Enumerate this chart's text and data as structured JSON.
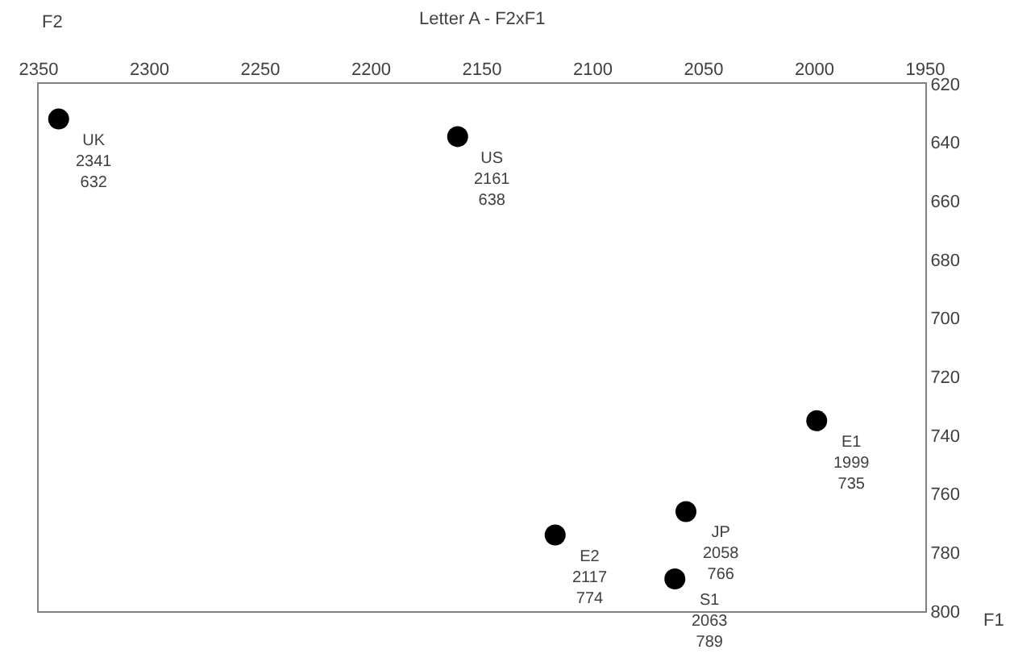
{
  "chart_data": {
    "type": "scatter",
    "title": "Letter A - F2xF1",
    "xlabel": "F2",
    "ylabel": "F1",
    "x": [
      2341,
      2161,
      1999,
      2058,
      2117,
      2063
    ],
    "values": [
      632,
      638,
      735,
      766,
      774,
      789
    ],
    "color": "#000000",
    "marker": "circle",
    "xlim": [
      2350,
      1950
    ],
    "xticks": [
      2350,
      2300,
      2250,
      2200,
      2150,
      2100,
      2050,
      2000,
      1950
    ],
    "ylim": [
      800,
      620
    ],
    "yticks": [
      620,
      640,
      660,
      680,
      700,
      720,
      740,
      760,
      780,
      800
    ],
    "annotations": [
      {
        "text": "UK\n2341\n632",
        "x": 2341,
        "y": 632
      },
      {
        "text": "US\n2161\n638",
        "x": 2161,
        "y": 638
      },
      {
        "text": "E1\n1999\n735",
        "x": 1999,
        "y": 735
      },
      {
        "text": "JP\n2058\n766",
        "x": 2058,
        "y": 766
      },
      {
        "text": "E2\n2117\n774",
        "x": 2117,
        "y": 774
      },
      {
        "text": "S1\n2063\n789",
        "x": 2063,
        "y": 789
      }
    ]
  }
}
